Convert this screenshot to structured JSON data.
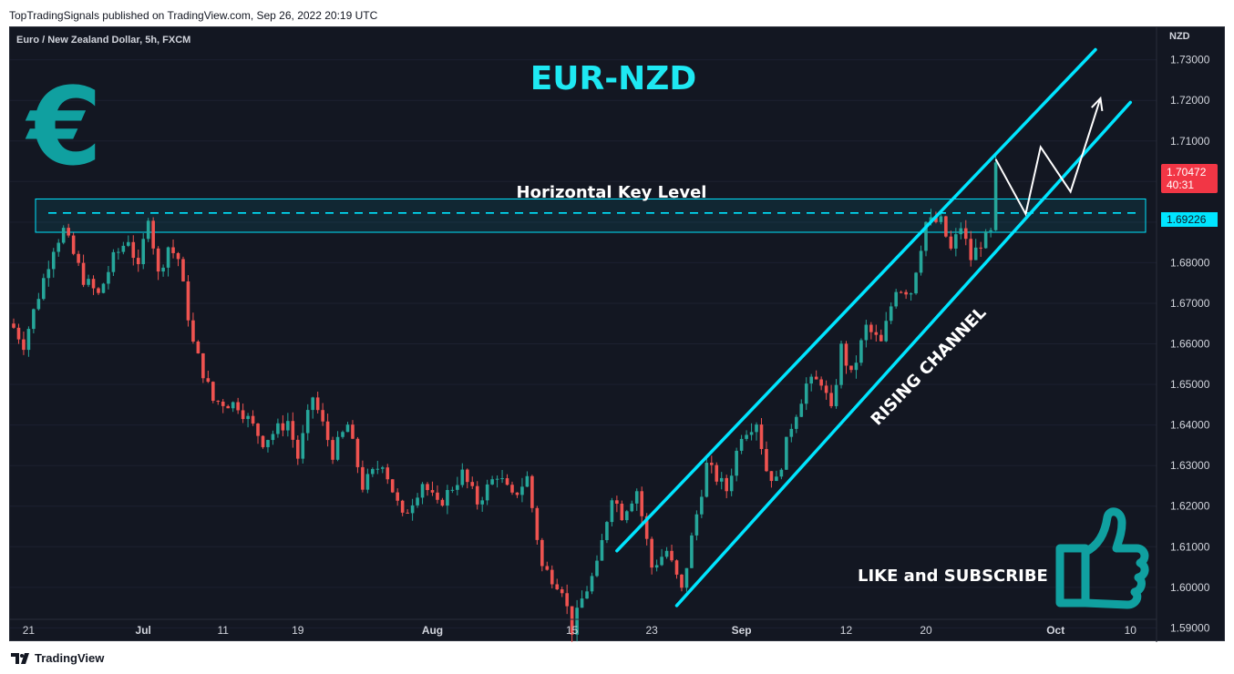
{
  "header": {
    "published": "TopTradingSignals published on TradingView.com, Sep 26, 2022 20:19 UTC"
  },
  "chart": {
    "symbol_info": "Euro / New Zealand Dollar, 5h, FXCM",
    "currency": "NZD",
    "title": "EUR-NZD",
    "key_level_label": "Horizontal Key Level",
    "channel_label": "RISING CHANNEL",
    "cta_label": "LIKE and SUBSCRIBE",
    "euro_symbol": "€",
    "price_tag": "1.70472",
    "countdown": "40:31",
    "level_tag": "1.69226",
    "colors": {
      "background": "#131722",
      "up_candle": "#26a69a",
      "down_candle": "#ef5350",
      "annotation": "#00e5ff",
      "title": "#1ee8f2",
      "euro_icon": "#10a0a0",
      "price_tag_bg": "#f23645"
    }
  },
  "footer": {
    "brand": "TradingView",
    "logo_icon": "tradingview-logo-icon"
  },
  "chart_data": {
    "type": "candlestick",
    "ylim": [
      1.5865,
      1.738
    ],
    "y_ticks": [
      "1.73000",
      "1.72000",
      "1.71000",
      "1.70000",
      "1.69000",
      "1.68000",
      "1.67000",
      "1.66000",
      "1.65000",
      "1.64000",
      "1.63000",
      "1.62000",
      "1.61000",
      "1.60000",
      "1.59000"
    ],
    "x_ticks": [
      {
        "label": "21",
        "index": 3
      },
      {
        "label": "Jul",
        "index": 26
      },
      {
        "label": "11",
        "index": 42
      },
      {
        "label": "19",
        "index": 57
      },
      {
        "label": "Aug",
        "index": 84
      },
      {
        "label": "15",
        "index": 112
      },
      {
        "label": "23",
        "index": 128
      },
      {
        "label": "Sep",
        "index": 146
      },
      {
        "label": "12",
        "index": 167
      },
      {
        "label": "20",
        "index": 183
      },
      {
        "label": "Oct",
        "index": 209
      },
      {
        "label": "10",
        "index": 224
      }
    ],
    "last_price": 1.70472,
    "key_level": 1.69226,
    "key_zone": [
      1.6875,
      1.6957
    ],
    "channel": {
      "upper": [
        [
          121,
          1.609
        ],
        [
          217,
          1.7325
        ]
      ],
      "lower": [
        [
          133,
          1.5955
        ],
        [
          224,
          1.7195
        ]
      ]
    },
    "projection": [
      [
        197,
        1.7055
      ],
      [
        203,
        1.692
      ],
      [
        206,
        1.7085
      ],
      [
        212,
        1.6975
      ],
      [
        218,
        1.7205
      ]
    ],
    "anchors": [
      [
        0,
        1.664
      ],
      [
        2,
        1.66
      ],
      [
        8,
        1.684
      ],
      [
        10,
        1.688
      ],
      [
        14,
        1.676
      ],
      [
        17,
        1.672
      ],
      [
        20,
        1.681
      ],
      [
        23,
        1.686
      ],
      [
        25,
        1.678
      ],
      [
        27,
        1.692
      ],
      [
        29,
        1.677
      ],
      [
        31,
        1.684
      ],
      [
        33,
        1.681
      ],
      [
        36,
        1.66
      ],
      [
        40,
        1.646
      ],
      [
        45,
        1.645
      ],
      [
        50,
        1.636
      ],
      [
        55,
        1.641
      ],
      [
        57,
        1.632
      ],
      [
        60,
        1.647
      ],
      [
        64,
        1.633
      ],
      [
        67,
        1.64
      ],
      [
        70,
        1.625
      ],
      [
        74,
        1.631
      ],
      [
        78,
        1.617
      ],
      [
        82,
        1.626
      ],
      [
        85,
        1.62
      ],
      [
        90,
        1.628
      ],
      [
        93,
        1.621
      ],
      [
        97,
        1.628
      ],
      [
        100,
        1.622
      ],
      [
        103,
        1.627
      ],
      [
        106,
        1.605
      ],
      [
        110,
        1.6
      ],
      [
        112,
        1.5895
      ],
      [
        114,
        1.597
      ],
      [
        117,
        1.605
      ],
      [
        120,
        1.623
      ],
      [
        122,
        1.618
      ],
      [
        125,
        1.624
      ],
      [
        128,
        1.605
      ],
      [
        131,
        1.609
      ],
      [
        134,
        1.599
      ],
      [
        136,
        1.612
      ],
      [
        139,
        1.63
      ],
      [
        143,
        1.624
      ],
      [
        146,
        1.638
      ],
      [
        149,
        1.641
      ],
      [
        151,
        1.629
      ],
      [
        153,
        1.626
      ],
      [
        156,
        1.64
      ],
      [
        159,
        1.65
      ],
      [
        162,
        1.651
      ],
      [
        164,
        1.643
      ],
      [
        166,
        1.659
      ],
      [
        168,
        1.652
      ],
      [
        171,
        1.664
      ],
      [
        174,
        1.66
      ],
      [
        177,
        1.674
      ],
      [
        180,
        1.673
      ],
      [
        183,
        1.69
      ],
      [
        186,
        1.69
      ],
      [
        188,
        1.683
      ],
      [
        190,
        1.689
      ],
      [
        192,
        1.681
      ],
      [
        194,
        1.685
      ],
      [
        196,
        1.687
      ],
      [
        197,
        1.7047
      ]
    ]
  }
}
